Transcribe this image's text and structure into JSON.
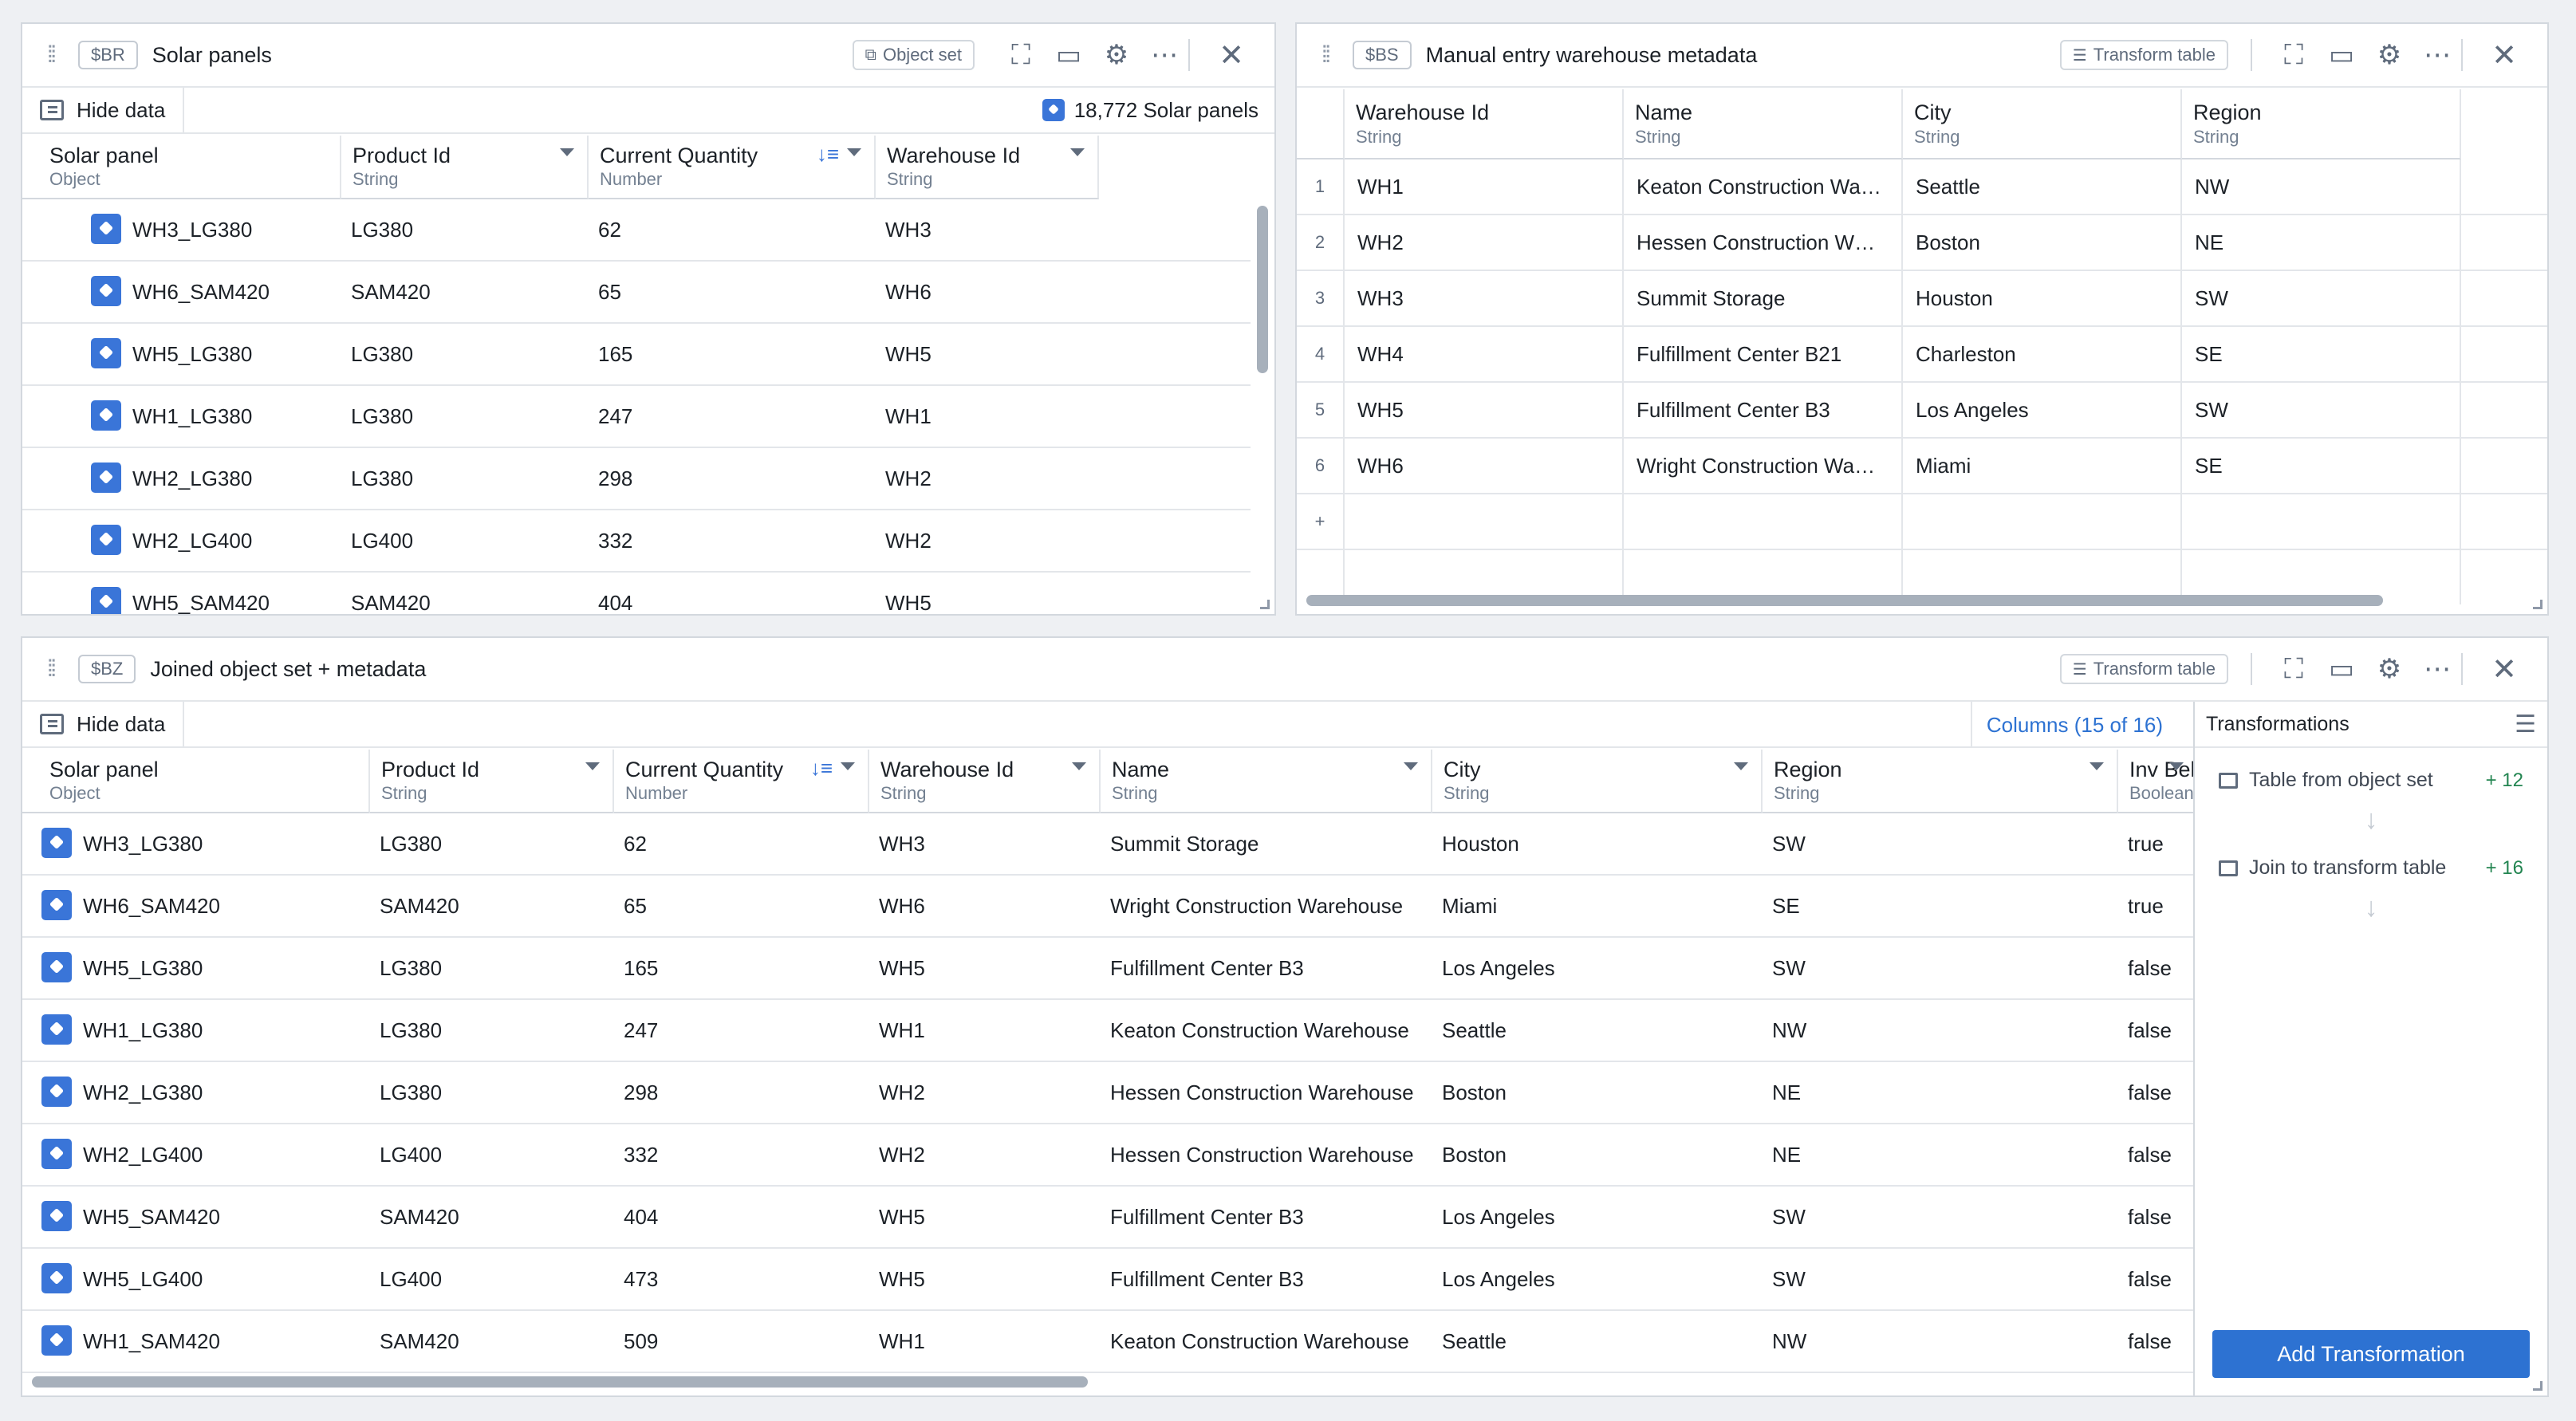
{
  "panels": {
    "solar": {
      "tag": "$BR",
      "title": "Solar panels",
      "header_button": "Object set",
      "hide_data": "Hide data",
      "count": "18,772 Solar panels",
      "columns": [
        {
          "name": "Solar panel",
          "type": "Object"
        },
        {
          "name": "Product Id",
          "type": "String"
        },
        {
          "name": "Current Quantity",
          "type": "Number"
        },
        {
          "name": "Warehouse Id",
          "type": "String"
        }
      ],
      "rows": [
        [
          "WH3_LG380",
          "LG380",
          "62",
          "WH3"
        ],
        [
          "WH6_SAM420",
          "SAM420",
          "65",
          "WH6"
        ],
        [
          "WH5_LG380",
          "LG380",
          "165",
          "WH5"
        ],
        [
          "WH1_LG380",
          "LG380",
          "247",
          "WH1"
        ],
        [
          "WH2_LG380",
          "LG380",
          "298",
          "WH2"
        ],
        [
          "WH2_LG400",
          "LG400",
          "332",
          "WH2"
        ],
        [
          "WH5_SAM420",
          "SAM420",
          "404",
          "WH5"
        ]
      ]
    },
    "warehouse": {
      "tag": "$BS",
      "title": "Manual entry warehouse metadata",
      "header_button": "Transform table",
      "columns": [
        {
          "name": "Warehouse Id",
          "type": "String"
        },
        {
          "name": "Name",
          "type": "String"
        },
        {
          "name": "City",
          "type": "String"
        },
        {
          "name": "Region",
          "type": "String"
        }
      ],
      "rows": [
        {
          "n": "1",
          "cells": [
            "WH1",
            "Keaton Construction Wa…",
            "Seattle",
            "NW"
          ]
        },
        {
          "n": "2",
          "cells": [
            "WH2",
            "Hessen Construction W…",
            "Boston",
            "NE"
          ]
        },
        {
          "n": "3",
          "cells": [
            "WH3",
            "Summit Storage",
            "Houston",
            "SW"
          ]
        },
        {
          "n": "4",
          "cells": [
            "WH4",
            "Fulfillment Center B21",
            "Charleston",
            "SE"
          ]
        },
        {
          "n": "5",
          "cells": [
            "WH5",
            "Fulfillment Center B3",
            "Los Angeles",
            "SW"
          ]
        },
        {
          "n": "6",
          "cells": [
            "WH6",
            "Wright Construction Wa…",
            "Miami",
            "SE"
          ]
        }
      ],
      "add_row": "+"
    },
    "joined": {
      "tag": "$BZ",
      "title": "Joined object set + metadata",
      "header_button": "Transform table",
      "hide_data": "Hide data",
      "columns_link": "Columns (15 of 16)",
      "columns": [
        {
          "name": "Solar panel",
          "type": "Object"
        },
        {
          "name": "Product Id",
          "type": "String"
        },
        {
          "name": "Current Quantity",
          "type": "Number"
        },
        {
          "name": "Warehouse Id",
          "type": "String"
        },
        {
          "name": "Name",
          "type": "String"
        },
        {
          "name": "City",
          "type": "String"
        },
        {
          "name": "Region",
          "type": "String"
        },
        {
          "name": "Inv Belo",
          "type": "Boolean"
        }
      ],
      "rows": [
        [
          "WH3_LG380",
          "LG380",
          "62",
          "WH3",
          "Summit Storage",
          "Houston",
          "SW",
          "true"
        ],
        [
          "WH6_SAM420",
          "SAM420",
          "65",
          "WH6",
          "Wright Construction Warehouse",
          "Miami",
          "SE",
          "true"
        ],
        [
          "WH5_LG380",
          "LG380",
          "165",
          "WH5",
          "Fulfillment Center B3",
          "Los Angeles",
          "SW",
          "false"
        ],
        [
          "WH1_LG380",
          "LG380",
          "247",
          "WH1",
          "Keaton Construction Warehouse",
          "Seattle",
          "NW",
          "false"
        ],
        [
          "WH2_LG380",
          "LG380",
          "298",
          "WH2",
          "Hessen Construction Warehouse",
          "Boston",
          "NE",
          "false"
        ],
        [
          "WH2_LG400",
          "LG400",
          "332",
          "WH2",
          "Hessen Construction Warehouse",
          "Boston",
          "NE",
          "false"
        ],
        [
          "WH5_SAM420",
          "SAM420",
          "404",
          "WH5",
          "Fulfillment Center B3",
          "Los Angeles",
          "SW",
          "false"
        ],
        [
          "WH5_LG400",
          "LG400",
          "473",
          "WH5",
          "Fulfillment Center B3",
          "Los Angeles",
          "SW",
          "false"
        ],
        [
          "WH1_SAM420",
          "SAM420",
          "509",
          "WH1",
          "Keaton Construction Warehouse",
          "Seattle",
          "NW",
          "false"
        ]
      ],
      "transformations": {
        "title": "Transformations",
        "steps": [
          {
            "label": "Table from object set",
            "count": "+ 12"
          },
          {
            "label": "Join to transform table",
            "count": "+ 16"
          }
        ],
        "add_button": "Add Transformation"
      }
    }
  }
}
